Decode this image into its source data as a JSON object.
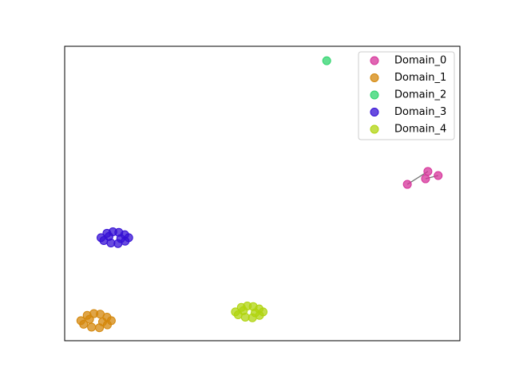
{
  "chart_data": {
    "type": "scatter",
    "xlim": [
      0,
      100
    ],
    "ylim": [
      0,
      100
    ],
    "legend": "upper right",
    "series": [
      {
        "name": "Domain_0",
        "color": "#d6339a",
        "x": [
          86.7,
          91.3,
          91.9,
          94.5
        ],
        "y": [
          53.1,
          55.0,
          57.5,
          56.1
        ]
      },
      {
        "name": "Domain_1",
        "color": "#d4870b",
        "x": [
          4.1,
          5.7,
          7.4,
          9.0,
          10.7,
          11.8,
          4.8,
          6.8,
          8.8,
          10.8,
          6.3,
          9.6
        ],
        "y": [
          6.8,
          8.6,
          9.2,
          9.0,
          8.0,
          6.8,
          5.6,
          4.6,
          4.4,
          5.4,
          7.3,
          6.4
        ]
      },
      {
        "name": "Domain_2",
        "color": "#2fd46d",
        "x": [
          66.3
        ],
        "y": [
          95.1
        ]
      },
      {
        "name": "Domain_3",
        "color": "#3510d4",
        "x": [
          9.2,
          10.7,
          12.2,
          13.7,
          15.2,
          16.2,
          9.9,
          11.7,
          13.5,
          15.3,
          11.2,
          14.2
        ],
        "y": [
          35.0,
          36.5,
          37.0,
          36.8,
          36.0,
          35.0,
          34.0,
          33.2,
          33.0,
          33.8,
          35.4,
          34.7
        ]
      },
      {
        "name": "Domain_4",
        "color": "#b0d40f",
        "x": [
          43.2,
          44.7,
          46.2,
          47.7,
          49.2,
          50.2,
          43.9,
          45.7,
          47.5,
          49.3,
          45.2,
          48.2
        ],
        "y": [
          9.8,
          11.3,
          11.8,
          11.6,
          10.8,
          9.8,
          8.8,
          8.0,
          7.8,
          8.6,
          10.2,
          9.5
        ]
      }
    ]
  }
}
